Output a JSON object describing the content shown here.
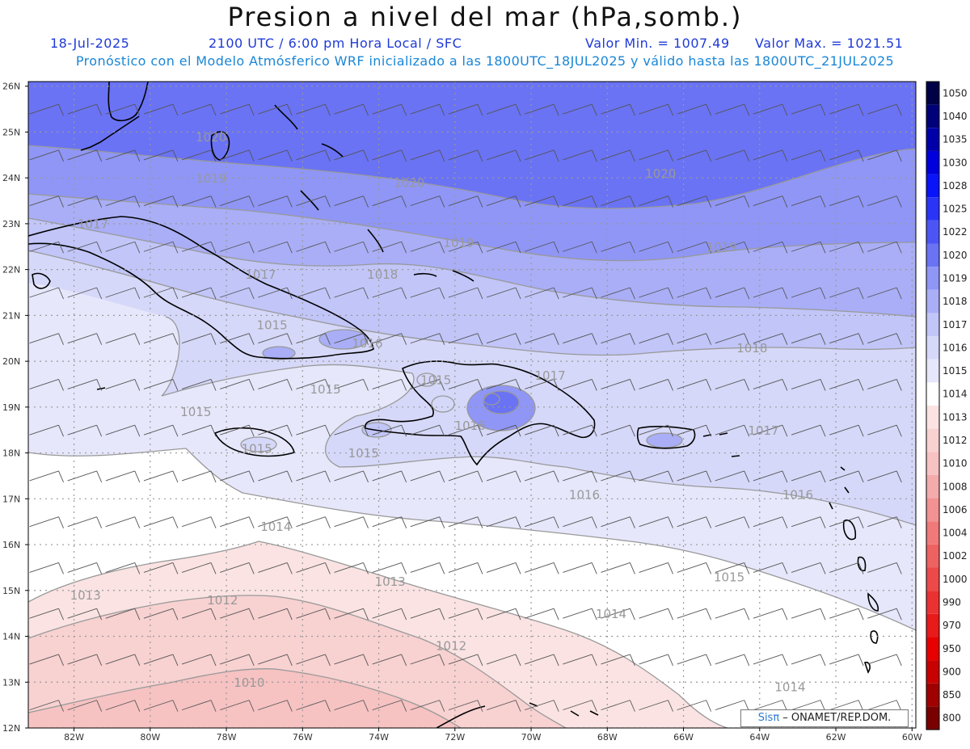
{
  "header": {
    "title": "Presion a nivel del mar (hPa,somb.)",
    "date": "18-Jul-2025",
    "time_info": "2100 UTC / 6:00 pm Hora Local / SFC",
    "min_value": "Valor Min. = 1007.49",
    "max_value": "Valor Max. = 1021.51",
    "model_info": "Pronóstico con el Modelo Atmósferico WRF inicializado a las 1800UTC_18JUL2025 y válido hasta las  1800UTC_21JUL2025"
  },
  "map": {
    "lon_labels": [
      "82W",
      "80W",
      "78W",
      "76W",
      "74W",
      "72W",
      "70W",
      "68W",
      "66W",
      "64W",
      "62W",
      "60W"
    ],
    "lat_labels": [
      "26N",
      "25N",
      "24N",
      "23N",
      "22N",
      "21N",
      "20N",
      "19N",
      "18N",
      "17N",
      "16N",
      "15N",
      "14N",
      "13N",
      "12N"
    ],
    "isobar_labels": [
      {
        "text": "1020",
        "lon": -78.4,
        "lat": 24.8
      },
      {
        "text": "1020",
        "lon": -73.2,
        "lat": 23.8
      },
      {
        "text": "1020",
        "lon": -66.6,
        "lat": 24.0
      },
      {
        "text": "1019",
        "lon": -78.4,
        "lat": 23.9
      },
      {
        "text": "1019",
        "lon": -71.9,
        "lat": 22.5
      },
      {
        "text": "1019",
        "lon": -65.0,
        "lat": 22.4
      },
      {
        "text": "1018",
        "lon": -73.9,
        "lat": 21.8
      },
      {
        "text": "1018",
        "lon": -64.2,
        "lat": 20.2
      },
      {
        "text": "1017",
        "lon": -77.1,
        "lat": 21.8
      },
      {
        "text": "1017",
        "lon": -69.5,
        "lat": 19.6
      },
      {
        "text": "1017",
        "lon": -63.9,
        "lat": 18.4
      },
      {
        "text": "1017",
        "lon": -81.5,
        "lat": 22.9
      },
      {
        "text": "1016",
        "lon": -74.3,
        "lat": 20.3
      },
      {
        "text": "1016",
        "lon": -71.6,
        "lat": 18.5
      },
      {
        "text": "1016",
        "lon": -68.6,
        "lat": 17.0
      },
      {
        "text": "1016",
        "lon": -63.0,
        "lat": 17.0
      },
      {
        "text": "1015",
        "lon": -76.8,
        "lat": 20.7
      },
      {
        "text": "1015",
        "lon": -75.4,
        "lat": 19.3
      },
      {
        "text": "1015",
        "lon": -78.8,
        "lat": 18.8
      },
      {
        "text": "1015",
        "lon": -77.2,
        "lat": 18.0
      },
      {
        "text": "1015",
        "lon": -74.4,
        "lat": 17.9
      },
      {
        "text": "1015",
        "lon": -72.5,
        "lat": 19.5
      },
      {
        "text": "1015",
        "lon": -64.8,
        "lat": 15.2
      },
      {
        "text": "1014",
        "lon": -76.7,
        "lat": 16.3
      },
      {
        "text": "1014",
        "lon": -67.9,
        "lat": 14.4
      },
      {
        "text": "1014",
        "lon": -63.2,
        "lat": 12.8
      },
      {
        "text": "1013",
        "lon": -81.7,
        "lat": 14.8
      },
      {
        "text": "1013",
        "lon": -73.7,
        "lat": 15.1
      },
      {
        "text": "1012",
        "lon": -78.1,
        "lat": 14.7
      },
      {
        "text": "1012",
        "lon": -72.1,
        "lat": 13.7
      },
      {
        "text": "1010",
        "lon": -77.4,
        "lat": 12.9
      }
    ],
    "colors": {
      "p1020": "#6a73f4",
      "p1019": "#8f96f6",
      "p1018": "#a9aef6",
      "p1017": "#c1c5f8",
      "p1016": "#d6d8f9",
      "p1015": "#e6e7fb",
      "p1014": "#ffffff",
      "p1013": "#fbe3e3",
      "p1012": "#f8d1d1",
      "p1010": "#f6c2c2",
      "contour": "#999999",
      "coast": "#000000",
      "grid": "#999999"
    }
  },
  "colorbar": {
    "levels": [
      {
        "label": "1050",
        "color": "#000046"
      },
      {
        "label": "1040",
        "color": "#000078"
      },
      {
        "label": "1035",
        "color": "#0000a8"
      },
      {
        "label": "1030",
        "color": "#0000dc"
      },
      {
        "label": "1028",
        "color": "#0a14f8"
      },
      {
        "label": "1025",
        "color": "#2a34f6"
      },
      {
        "label": "1022",
        "color": "#4c55f4"
      },
      {
        "label": "1020",
        "color": "#6a73f4"
      },
      {
        "label": "1019",
        "color": "#8f96f6"
      },
      {
        "label": "1018",
        "color": "#a9aef6"
      },
      {
        "label": "1017",
        "color": "#c1c5f8"
      },
      {
        "label": "1016",
        "color": "#d6d8f9"
      },
      {
        "label": "1015",
        "color": "#e6e7fb"
      },
      {
        "label": "1014",
        "color": "#ffffff"
      },
      {
        "label": "1013",
        "color": "#fbe3e3"
      },
      {
        "label": "1012",
        "color": "#f8d1d1"
      },
      {
        "label": "1010",
        "color": "#f6c2c2"
      },
      {
        "label": "1008",
        "color": "#f4abab"
      },
      {
        "label": "1006",
        "color": "#f29292"
      },
      {
        "label": "1004",
        "color": "#f07a7a"
      },
      {
        "label": "1002",
        "color": "#ee6262"
      },
      {
        "label": "1000",
        "color": "#ec4a4a"
      },
      {
        "label": "990",
        "color": "#ea3232"
      },
      {
        "label": "970",
        "color": "#e81a1a"
      },
      {
        "label": "950",
        "color": "#e60000"
      },
      {
        "label": "900",
        "color": "#c80000"
      },
      {
        "label": "850",
        "color": "#a00000"
      },
      {
        "label": "800",
        "color": "#780000"
      }
    ]
  },
  "credit": {
    "brand": "Sisπ",
    "org": " – ONAMET/REP.DOM."
  }
}
